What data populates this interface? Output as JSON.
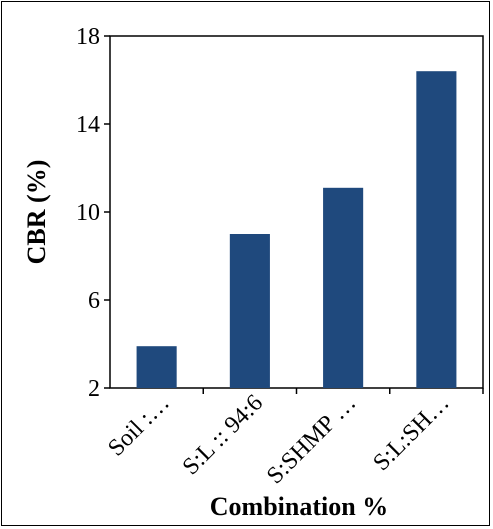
{
  "chart_data": {
    "type": "bar",
    "categories": [
      "Soil :…",
      "S:L :: 94:6",
      "S:SHMP …",
      "S:L:SH…"
    ],
    "values": [
      3.9,
      9.0,
      11.1,
      16.4
    ],
    "title": "",
    "xlabel": "Combination %",
    "ylabel": "CBR  (%)",
    "ylim": [
      2,
      18
    ],
    "yticks": [
      "2",
      "6",
      "10",
      "14",
      "18"
    ],
    "bar_color": "#1f497d",
    "grid": false,
    "legend": "none"
  }
}
